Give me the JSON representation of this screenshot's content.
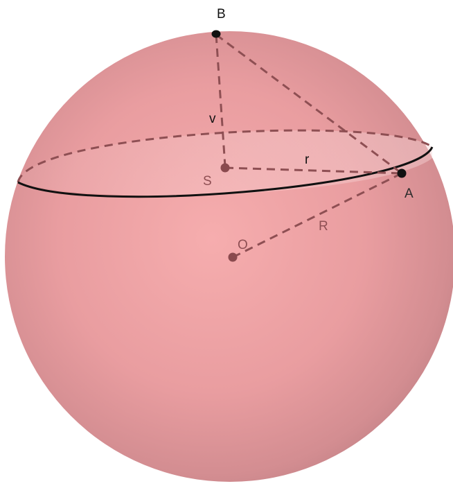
{
  "diagram": {
    "labels": {
      "B": "B",
      "A": "A",
      "S": "S",
      "O": "O",
      "v": "v",
      "r": "r",
      "R": "R"
    },
    "colors": {
      "sphere_light": "#f4a9ab",
      "sphere_mid": "#e4979b",
      "sphere_dark": "#c47e84",
      "cap_tint": "#f1c4c6",
      "dashed_line": "#8e4f53",
      "circle_front": "#111111",
      "point_dark": "#111111",
      "point_muted": "#8a4a4e",
      "label_dark": "#111111",
      "label_muted": "#8e4f53"
    }
  }
}
